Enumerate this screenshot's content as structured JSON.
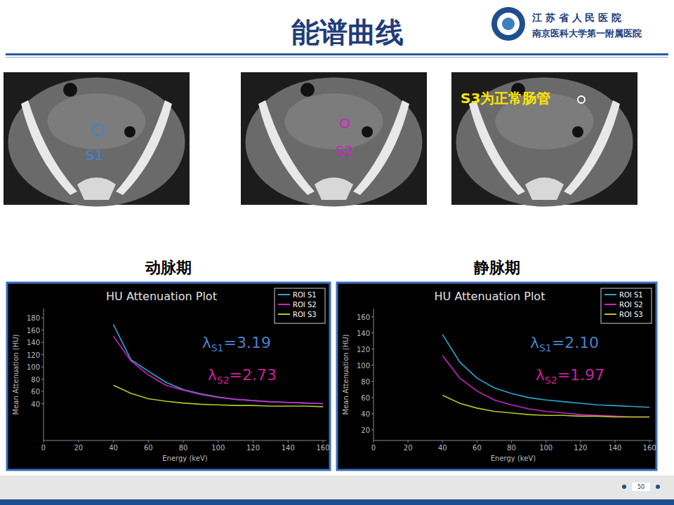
{
  "header": {
    "title": "能谱曲线",
    "logo_line1": "江 苏 省 人 民 医 院",
    "logo_line2": "南京医科大学第一附属医院"
  },
  "images": [
    {
      "label": "S1",
      "color": "#3a86d8"
    },
    {
      "label": "S2",
      "color": "#d020c0"
    },
    {
      "label": "S3为正常肠管",
      "color": "#ffe400"
    }
  ],
  "footer": {
    "page": "50"
  },
  "chart_data": [
    {
      "type": "line",
      "title": "动脉期",
      "subtitle": "HU Attenuation Plot",
      "x_label": "Energy (keV)",
      "y_label": "Mean Attenuation (HU)",
      "x": [
        40,
        50,
        60,
        70,
        80,
        90,
        100,
        110,
        120,
        130,
        140,
        150,
        160
      ],
      "xlim": [
        0,
        162
      ],
      "xticks": [
        0,
        20,
        40,
        60,
        80,
        100,
        120,
        140,
        160
      ],
      "ylim": [
        -20,
        195
      ],
      "yticks": [
        40,
        60,
        80,
        100,
        120,
        140,
        160,
        180
      ],
      "grid": false,
      "legend": "upper right",
      "series": [
        {
          "name": "ROI S1",
          "color": "#2aa6d2",
          "values": [
            169,
            112,
            93,
            75,
            63,
            56,
            51,
            47,
            45,
            43,
            42,
            41,
            40
          ]
        },
        {
          "name": "ROI S2",
          "color": "#c822c8",
          "values": [
            150,
            110,
            87,
            70,
            62,
            55,
            50,
            47,
            45,
            43,
            42,
            41,
            40
          ]
        },
        {
          "name": "ROI S3",
          "color": "#b4c81e",
          "values": [
            70,
            57,
            48,
            44,
            41,
            39,
            38,
            37,
            37,
            36,
            36,
            36,
            35
          ]
        }
      ],
      "annotations": [
        {
          "prefix": "λ",
          "subscript": "S1",
          "text": "=3.19",
          "color": "#4a80c8"
        },
        {
          "prefix": "λ",
          "subscript": "S2",
          "text": "=2.73",
          "color": "#c8209a"
        }
      ]
    },
    {
      "type": "line",
      "title": "静脉期",
      "subtitle": "HU Attenuation Plot",
      "x_label": "Energy (keV)",
      "y_label": "Mean Attenuation (HU)",
      "x": [
        40,
        50,
        60,
        70,
        80,
        90,
        100,
        110,
        120,
        130,
        140,
        150,
        160
      ],
      "xlim": [
        0,
        162
      ],
      "xticks": [
        0,
        20,
        40,
        60,
        80,
        100,
        120,
        140,
        160
      ],
      "ylim": [
        7,
        170
      ],
      "yticks": [
        20,
        40,
        60,
        80,
        100,
        120,
        140,
        160
      ],
      "grid": false,
      "legend": "upper right",
      "series": [
        {
          "name": "ROI S1",
          "color": "#2aa6d2",
          "values": [
            138,
            104,
            84,
            72,
            65,
            60,
            57,
            55,
            53,
            51,
            50,
            49,
            48
          ]
        },
        {
          "name": "ROI S2",
          "color": "#c822c8",
          "values": [
            112,
            84,
            68,
            57,
            51,
            46,
            43,
            41,
            39,
            38,
            37,
            36,
            36
          ]
        },
        {
          "name": "ROI S3",
          "color": "#b4c81e",
          "values": [
            63,
            53,
            47,
            43,
            41,
            39,
            38,
            38,
            37,
            37,
            36,
            36,
            36
          ]
        }
      ],
      "annotations": [
        {
          "prefix": "λ",
          "subscript": "S1",
          "text": "=2.10",
          "color": "#4a80c8"
        },
        {
          "prefix": "λ",
          "subscript": "S2",
          "text": "=1.97",
          "color": "#c8209a"
        }
      ]
    }
  ]
}
